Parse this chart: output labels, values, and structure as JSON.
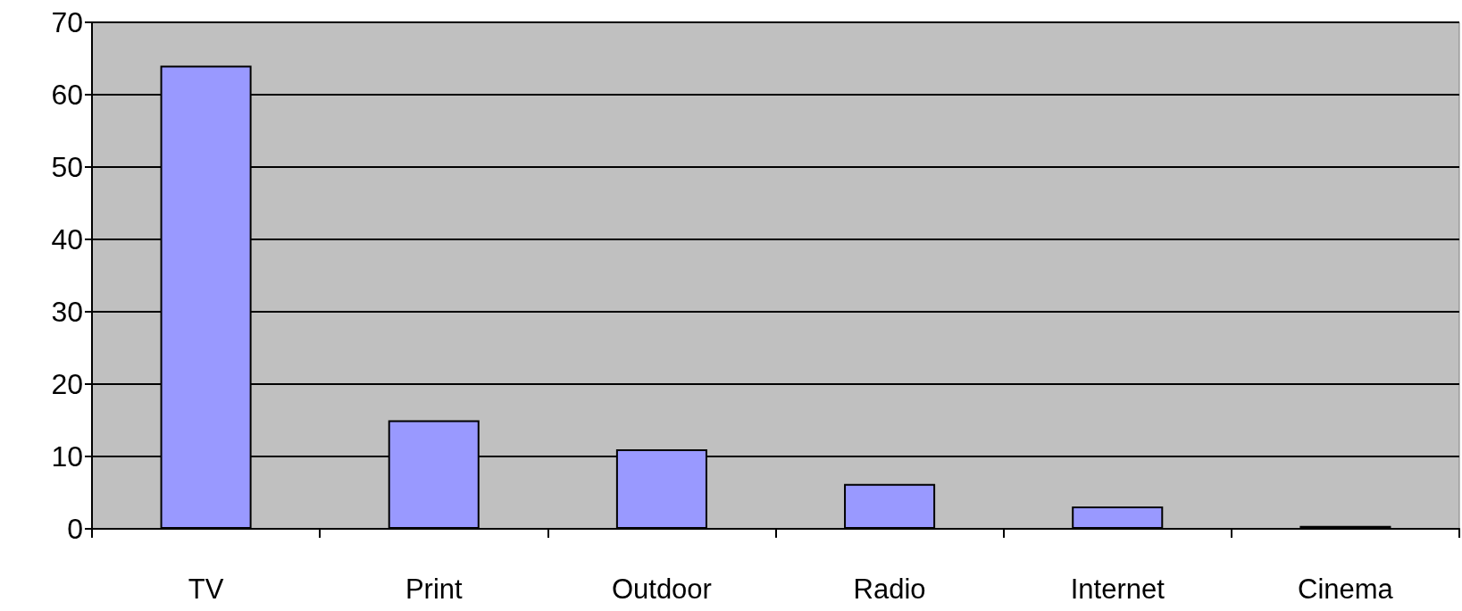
{
  "chart_data": {
    "type": "bar",
    "categories": [
      "TV",
      "Print",
      "Outdoor",
      "Radio",
      "Internet",
      "Cinema"
    ],
    "values": [
      64,
      15,
      11,
      6.2,
      3.1,
      0.4
    ],
    "color": "#9999ff",
    "ylim": [
      0,
      70
    ],
    "yticks": [
      0,
      10,
      20,
      30,
      40,
      50,
      60,
      70
    ],
    "grid": "y"
  }
}
